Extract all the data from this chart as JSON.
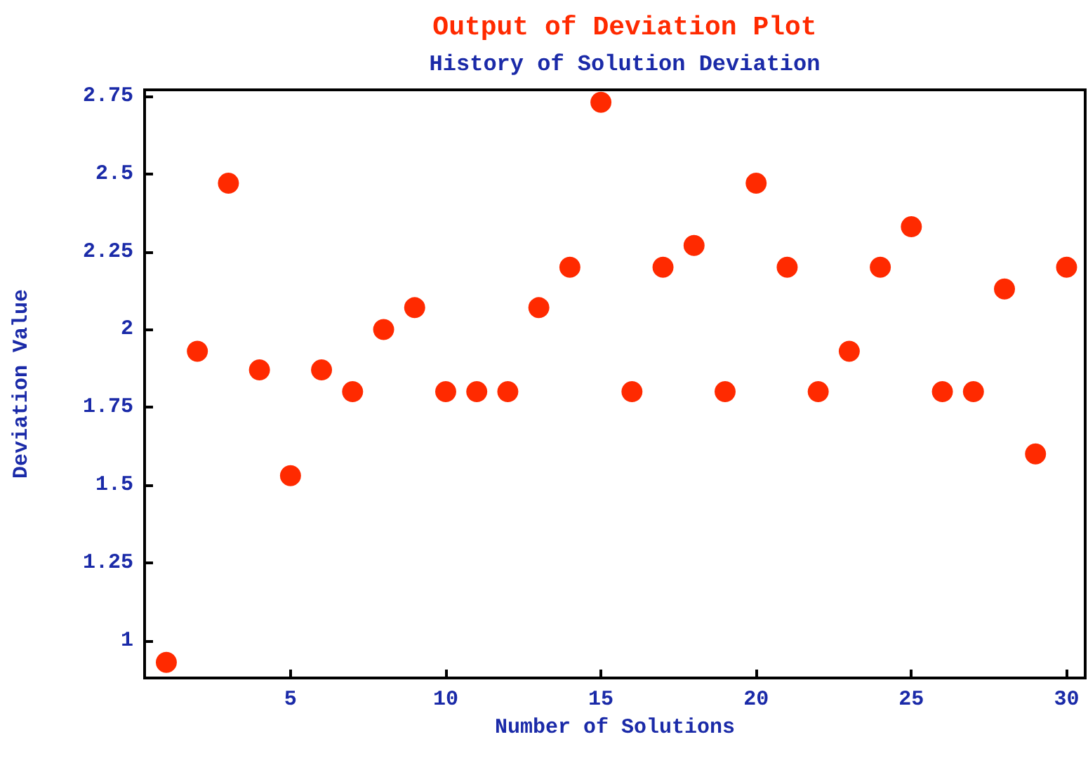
{
  "chart_data": {
    "type": "scatter",
    "title": "Output of Deviation Plot",
    "subtitle": "History of Solution Deviation",
    "xlabel": "Number of Solutions",
    "ylabel": "Deviation Value",
    "x": [
      1,
      2,
      3,
      4,
      5,
      6,
      7,
      8,
      9,
      10,
      11,
      12,
      13,
      14,
      15,
      16,
      17,
      18,
      19,
      20,
      21,
      22,
      23,
      24,
      25,
      26,
      27,
      28,
      29,
      30
    ],
    "series": [
      {
        "color": "#ff2a00",
        "values": [
          0.93,
          1.93,
          2.47,
          1.87,
          1.53,
          1.87,
          1.8,
          2.0,
          2.07,
          1.8,
          1.8,
          1.8,
          2.07,
          2.2,
          2.73,
          1.8,
          2.2,
          2.27,
          1.8,
          2.47,
          2.2,
          1.8,
          1.93,
          2.2,
          2.33,
          1.8,
          1.8,
          2.13,
          1.6,
          2.2
        ]
      }
    ],
    "xlim": [
      0.3,
      30.6
    ],
    "xticks": [
      5,
      10,
      15,
      20,
      25,
      30
    ],
    "ylim": [
      0.88,
      2.77
    ],
    "yticks": [
      1,
      1.25,
      1.5,
      1.75,
      2,
      2.25,
      2.5,
      2.75
    ],
    "grid": false,
    "marker": "circle"
  }
}
